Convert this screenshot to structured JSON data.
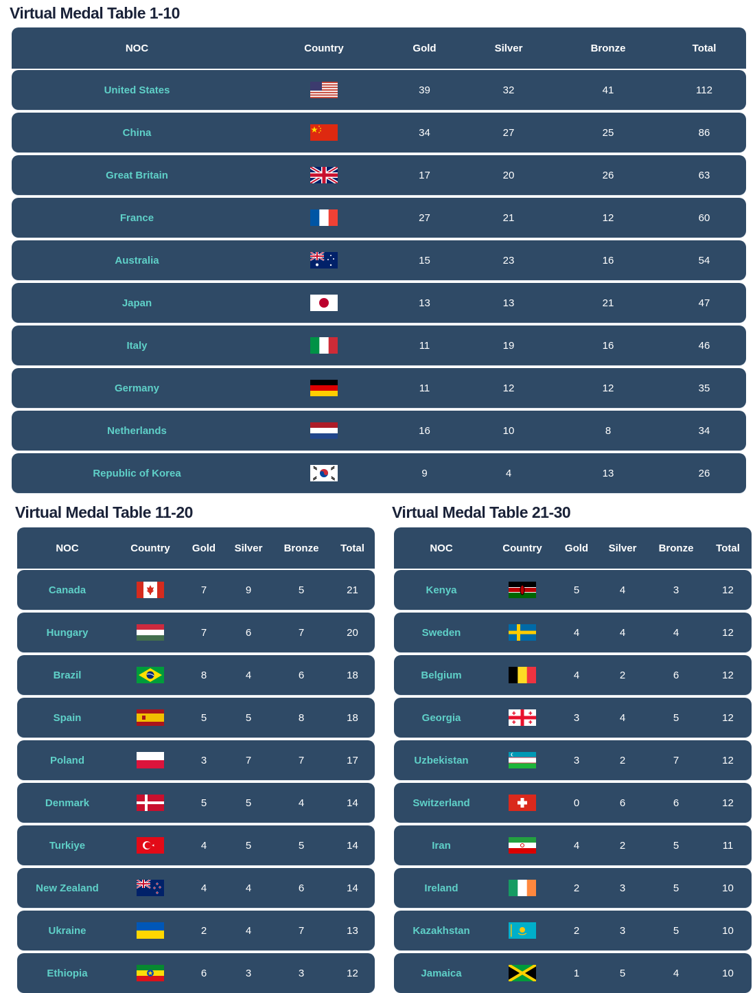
{
  "columns": [
    "NOC",
    "Country",
    "Gold",
    "Silver",
    "Bronze",
    "Total"
  ],
  "tables": [
    {
      "title": "Virtual Medal Table 1-10",
      "rows": [
        {
          "noc": "United States",
          "flag": "us",
          "gold": "39",
          "silver": "32",
          "bronze": "41",
          "total": "112"
        },
        {
          "noc": "China",
          "flag": "cn",
          "gold": "34",
          "silver": "27",
          "bronze": "25",
          "total": "86"
        },
        {
          "noc": "Great Britain",
          "flag": "gb",
          "gold": "17",
          "silver": "20",
          "bronze": "26",
          "total": "63"
        },
        {
          "noc": "France",
          "flag": "fr",
          "gold": "27",
          "silver": "21",
          "bronze": "12",
          "total": "60"
        },
        {
          "noc": "Australia",
          "flag": "au",
          "gold": "15",
          "silver": "23",
          "bronze": "16",
          "total": "54"
        },
        {
          "noc": "Japan",
          "flag": "jp",
          "gold": "13",
          "silver": "13",
          "bronze": "21",
          "total": "47"
        },
        {
          "noc": "Italy",
          "flag": "it",
          "gold": "11",
          "silver": "19",
          "bronze": "16",
          "total": "46"
        },
        {
          "noc": "Germany",
          "flag": "de",
          "gold": "11",
          "silver": "12",
          "bronze": "12",
          "total": "35"
        },
        {
          "noc": "Netherlands",
          "flag": "nl",
          "gold": "16",
          "silver": "10",
          "bronze": "8",
          "total": "34"
        },
        {
          "noc": "Republic of Korea",
          "flag": "kr",
          "gold": "9",
          "silver": "4",
          "bronze": "13",
          "total": "26"
        }
      ]
    },
    {
      "title": "Virtual Medal Table 11-20",
      "rows": [
        {
          "noc": "Canada",
          "flag": "ca",
          "gold": "7",
          "silver": "9",
          "bronze": "5",
          "total": "21"
        },
        {
          "noc": "Hungary",
          "flag": "hu",
          "gold": "7",
          "silver": "6",
          "bronze": "7",
          "total": "20"
        },
        {
          "noc": "Brazil",
          "flag": "br",
          "gold": "8",
          "silver": "4",
          "bronze": "6",
          "total": "18"
        },
        {
          "noc": "Spain",
          "flag": "es",
          "gold": "5",
          "silver": "5",
          "bronze": "8",
          "total": "18"
        },
        {
          "noc": "Poland",
          "flag": "pl",
          "gold": "3",
          "silver": "7",
          "bronze": "7",
          "total": "17"
        },
        {
          "noc": "Denmark",
          "flag": "dk",
          "gold": "5",
          "silver": "5",
          "bronze": "4",
          "total": "14"
        },
        {
          "noc": "Turkiye",
          "flag": "tr",
          "gold": "4",
          "silver": "5",
          "bronze": "5",
          "total": "14"
        },
        {
          "noc": "New Zealand",
          "flag": "nz",
          "gold": "4",
          "silver": "4",
          "bronze": "6",
          "total": "14"
        },
        {
          "noc": "Ukraine",
          "flag": "ua",
          "gold": "2",
          "silver": "4",
          "bronze": "7",
          "total": "13"
        },
        {
          "noc": "Ethiopia",
          "flag": "et",
          "gold": "6",
          "silver": "3",
          "bronze": "3",
          "total": "12"
        }
      ]
    },
    {
      "title": "Virtual Medal Table 21-30",
      "rows": [
        {
          "noc": "Kenya",
          "flag": "ke",
          "gold": "5",
          "silver": "4",
          "bronze": "3",
          "total": "12"
        },
        {
          "noc": "Sweden",
          "flag": "se",
          "gold": "4",
          "silver": "4",
          "bronze": "4",
          "total": "12"
        },
        {
          "noc": "Belgium",
          "flag": "be",
          "gold": "4",
          "silver": "2",
          "bronze": "6",
          "total": "12"
        },
        {
          "noc": "Georgia",
          "flag": "ge",
          "gold": "3",
          "silver": "4",
          "bronze": "5",
          "total": "12"
        },
        {
          "noc": "Uzbekistan",
          "flag": "uz",
          "gold": "3",
          "silver": "2",
          "bronze": "7",
          "total": "12"
        },
        {
          "noc": "Switzerland",
          "flag": "ch",
          "gold": "0",
          "silver": "6",
          "bronze": "6",
          "total": "12"
        },
        {
          "noc": "Iran",
          "flag": "ir",
          "gold": "4",
          "silver": "2",
          "bronze": "5",
          "total": "11"
        },
        {
          "noc": "Ireland",
          "flag": "ie",
          "gold": "2",
          "silver": "3",
          "bronze": "5",
          "total": "10"
        },
        {
          "noc": "Kazakhstan",
          "flag": "kz",
          "gold": "2",
          "silver": "3",
          "bronze": "5",
          "total": "10"
        },
        {
          "noc": "Jamaica",
          "flag": "jm",
          "gold": "1",
          "silver": "5",
          "bronze": "4",
          "total": "10"
        }
      ]
    }
  ]
}
